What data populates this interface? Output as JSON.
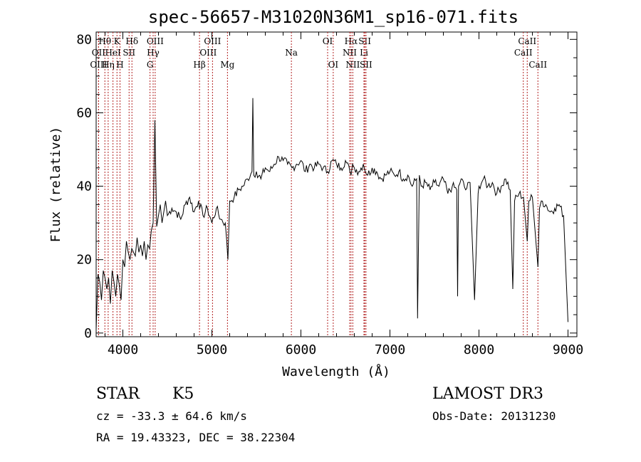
{
  "title": "spec-56657-M31020N36M1_sp16-071.fits",
  "chart_data": {
    "type": "line",
    "xlabel": "Wavelength (Å)",
    "ylabel": "Flux (relative)",
    "xlim": [
      3700,
      9100
    ],
    "ylim": [
      -1,
      82
    ],
    "xticks": [
      4000,
      5000,
      6000,
      7000,
      8000,
      9000
    ],
    "yticks": [
      0,
      20,
      40,
      60,
      80
    ],
    "grid": false,
    "legend": "none",
    "series_color": "#000000",
    "line_marker_color": "#b22222",
    "line_markers": [
      {
        "label": "Hθ",
        "x": 3798,
        "row": 0
      },
      {
        "label": "OII",
        "x": 3727,
        "row": 1
      },
      {
        "label": "OIII",
        "x": 3727,
        "row": 2
      },
      {
        "label": "K",
        "x": 3934,
        "row": 0
      },
      {
        "label": "HeI",
        "x": 3889,
        "row": 1
      },
      {
        "label": "Hη",
        "x": 3835,
        "row": 2
      },
      {
        "label": "H",
        "x": 3968,
        "row": 2
      },
      {
        "label": "Hδ",
        "x": 4102,
        "row": 0
      },
      {
        "label": "SII",
        "x": 4070,
        "row": 1
      },
      {
        "label": "OIII",
        "x": 4363,
        "row": 0
      },
      {
        "label": "Hγ",
        "x": 4340,
        "row": 1
      },
      {
        "label": "G",
        "x": 4305,
        "row": 2
      },
      {
        "label": "OIII",
        "x": 5007,
        "row": 0
      },
      {
        "label": "OIII",
        "x": 4959,
        "row": 1
      },
      {
        "label": "Hβ",
        "x": 4861,
        "row": 2
      },
      {
        "label": "Mg",
        "x": 5175,
        "row": 2
      },
      {
        "label": "Na",
        "x": 5893,
        "row": 1
      },
      {
        "label": "OI",
        "x": 6300,
        "row": 0
      },
      {
        "label": "OI",
        "x": 6363,
        "row": 2
      },
      {
        "label": "Hα",
        "x": 6563,
        "row": 0
      },
      {
        "label": "SII",
        "x": 6717,
        "row": 0
      },
      {
        "label": "NII",
        "x": 6548,
        "row": 1
      },
      {
        "label": "Li",
        "x": 6708,
        "row": 1
      },
      {
        "label": "NII",
        "x": 6583,
        "row": 2
      },
      {
        "label": "SII",
        "x": 6731,
        "row": 2
      },
      {
        "label": "CaII",
        "x": 8542,
        "row": 0
      },
      {
        "label": "CaII",
        "x": 8498,
        "row": 1
      },
      {
        "label": "CaII",
        "x": 8662,
        "row": 2
      }
    ],
    "series": [
      {
        "x": [
          3700,
          3720,
          3740,
          3760,
          3780,
          3800,
          3820,
          3840,
          3860,
          3880,
          3900,
          3920,
          3940,
          3960,
          3980,
          4000,
          4020,
          4040,
          4060,
          4080,
          4100,
          4120,
          4140,
          4160,
          4180,
          4200,
          4220,
          4240,
          4260,
          4280,
          4300,
          4320,
          4340,
          4360,
          4380,
          4400,
          4420,
          4440,
          4460,
          4480,
          4500,
          4550,
          4600,
          4650,
          4700,
          4750,
          4800,
          4850,
          4900,
          4950,
          5000,
          5050,
          5100,
          5150,
          5180,
          5200,
          5250,
          5300,
          5350,
          5400,
          5450,
          5460,
          5470,
          5500,
          5550,
          5600,
          5650,
          5700,
          5750,
          5800,
          5850,
          5900,
          5950,
          6000,
          6050,
          6100,
          6150,
          6200,
          6250,
          6300,
          6350,
          6400,
          6450,
          6500,
          6550,
          6563,
          6580,
          6600,
          6650,
          6700,
          6750,
          6800,
          6850,
          6900,
          6950,
          7000,
          7050,
          7100,
          7150,
          7200,
          7250,
          7300,
          7310,
          7330,
          7350,
          7400,
          7450,
          7500,
          7550,
          7600,
          7650,
          7700,
          7750,
          7760,
          7770,
          7800,
          7850,
          7900,
          7950,
          7990,
          8000,
          8050,
          8100,
          8150,
          8200,
          8250,
          8300,
          8350,
          8380,
          8400,
          8450,
          8500,
          8542,
          8560,
          8600,
          8662,
          8680,
          8700,
          8750,
          8800,
          8850,
          8900,
          8950,
          9000
        ],
        "y": [
          1,
          16,
          14,
          9,
          17,
          15,
          12,
          15,
          8,
          17,
          14,
          10,
          16,
          13,
          9,
          20,
          18,
          25,
          22,
          20,
          23,
          22,
          21,
          26,
          22,
          24,
          21,
          25,
          20,
          24,
          23,
          28,
          30,
          58,
          29,
          32,
          35,
          30,
          33,
          36,
          32,
          34,
          33,
          31,
          35,
          37,
          33,
          36,
          32,
          34,
          30,
          34,
          31,
          30,
          20,
          36,
          37,
          39,
          40,
          42,
          44,
          64,
          43,
          44,
          42,
          45,
          44,
          46,
          48,
          47,
          46,
          45,
          46,
          47,
          44,
          46,
          45,
          46,
          45,
          44,
          47,
          46,
          45,
          47,
          44,
          43,
          46,
          45,
          44,
          46,
          43,
          45,
          44,
          42,
          43,
          44,
          43,
          44,
          42,
          43,
          40,
          42,
          4,
          43,
          40,
          41,
          39,
          41,
          40,
          42,
          38,
          40,
          39,
          10,
          40,
          42,
          39,
          41,
          9,
          38,
          40,
          42,
          40,
          41,
          38,
          40,
          42,
          39,
          12,
          36,
          38,
          37,
          25,
          36,
          37,
          18,
          34,
          36,
          35,
          33,
          34,
          35,
          32,
          3
        ]
      }
    ]
  },
  "info": {
    "object_class": "STAR",
    "subclass": "K5",
    "survey": "LAMOST DR3",
    "redshift_line": "cz = -33.3 ± 64.6 km/s",
    "obs_date": "Obs-Date: 20131230",
    "coords": "RA =  19.43323, DEC =  38.22304"
  }
}
